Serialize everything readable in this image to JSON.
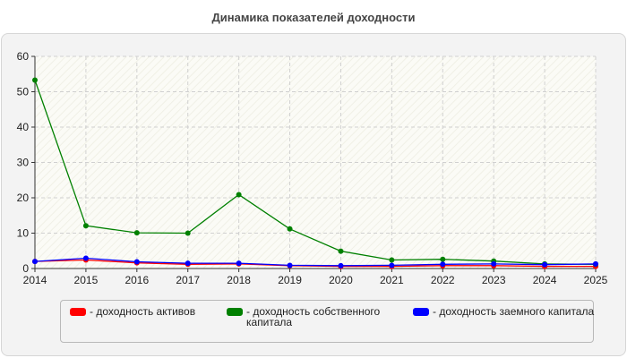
{
  "chart_data": {
    "type": "line",
    "title": "Динамика показателей доходности",
    "x": [
      "2014",
      "2015",
      "2016",
      "2017",
      "2018",
      "2019",
      "2020",
      "2021",
      "2022",
      "2023",
      "2024",
      "2025"
    ],
    "ylim": [
      0,
      60
    ],
    "yticks": [
      "0",
      "10",
      "20",
      "30",
      "40",
      "50",
      "60"
    ],
    "grid": true,
    "legend_position": "bottom",
    "series": [
      {
        "name": "- доходность активов",
        "color": "#ff0000",
        "values": [
          2.0,
          2.4,
          1.6,
          1.2,
          1.3,
          0.8,
          0.6,
          0.6,
          0.8,
          0.8,
          0.6,
          0.6
        ]
      },
      {
        "name": "- доходность собственного капитала",
        "color": "#008000",
        "values": [
          53.3,
          12.1,
          10.1,
          10.0,
          20.9,
          11.2,
          4.9,
          2.4,
          2.6,
          2.1,
          1.3,
          1.2
        ]
      },
      {
        "name": "- доходность заемного капитала",
        "color": "#0000ff",
        "values": [
          2.0,
          2.9,
          1.9,
          1.5,
          1.5,
          0.9,
          0.8,
          0.9,
          1.2,
          1.3,
          1.1,
          1.3
        ]
      }
    ]
  }
}
